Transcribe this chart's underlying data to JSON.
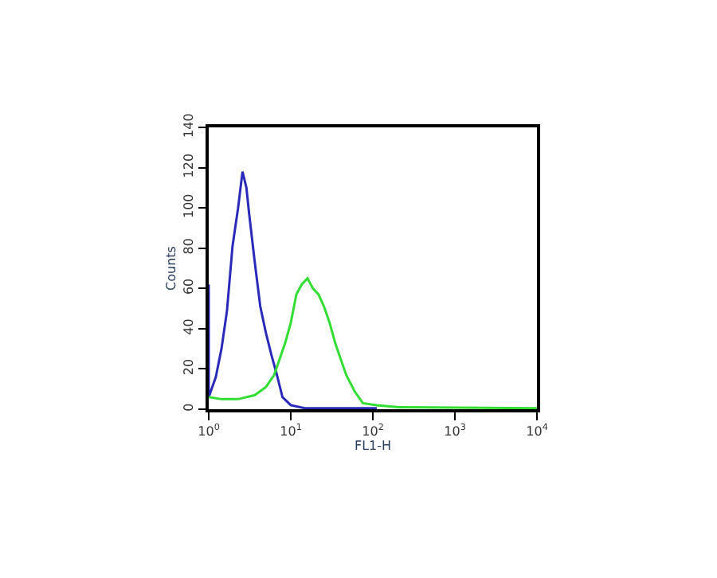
{
  "chart_data": {
    "type": "line",
    "xlabel": "FL1-H",
    "ylabel": "Counts",
    "log": "x",
    "marker": "none",
    "line_style": "solid",
    "xlim": [
      1,
      10000
    ],
    "xticks": [
      {
        "value": 1,
        "label": "10$^{0}$"
      },
      {
        "value": 10,
        "label": "10$^{1}$"
      },
      {
        "value": 100,
        "label": "10$^{2}$"
      },
      {
        "value": 1000,
        "label": "10$^{3}$"
      },
      {
        "value": 10000,
        "label": "10$^{4}$"
      }
    ],
    "ylim": [
      0,
      140
    ],
    "yticks": [
      0,
      20,
      40,
      60,
      80,
      100,
      120,
      140
    ],
    "series": [
      {
        "color": "#2a2ab8",
        "x": [
          1.0,
          1.0,
          1.22,
          1.43,
          1.67,
          1.95,
          2.28,
          2.58,
          2.88,
          3.11,
          3.64,
          4.25,
          4.97,
          5.8,
          6.78,
          7.92,
          10,
          14.8,
          23.6,
          112
        ],
        "values": [
          62,
          6,
          16,
          30,
          49,
          81,
          100,
          118,
          110,
          97,
          73,
          51,
          38,
          27,
          17,
          6,
          2,
          0.5,
          0.5,
          0.5
        ]
      },
      {
        "color": "#33dd33",
        "x": [
          1.0,
          1.43,
          2.28,
          3.64,
          4.97,
          6.27,
          7.33,
          8.56,
          10,
          11.7,
          13.6,
          16,
          18.6,
          21.8,
          25.4,
          29.7,
          34.7,
          40.5,
          47.4,
          59.8,
          75.6,
          111,
          208,
          10000
        ],
        "values": [
          6,
          5,
          5,
          7,
          11,
          17,
          25,
          33,
          43,
          57,
          62,
          65,
          60,
          57,
          51,
          43,
          33,
          25,
          17,
          9,
          3,
          2,
          1,
          0.5
        ]
      }
    ]
  }
}
